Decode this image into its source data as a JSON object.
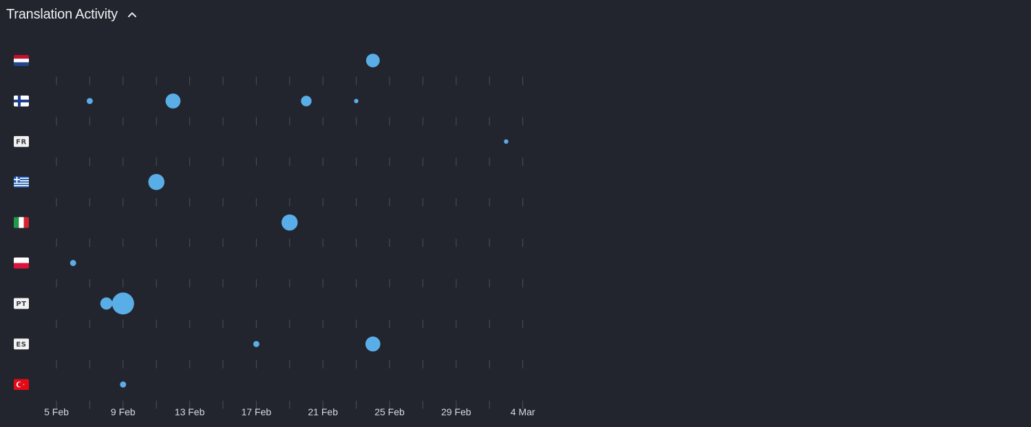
{
  "header": {
    "title": "Translation Activity",
    "collapse_icon": "chevron-up-icon"
  },
  "chart_data": {
    "type": "scatter",
    "title": "Translation Activity",
    "xlabel": "",
    "ylabel": "",
    "x_axis": {
      "type": "date",
      "range": [
        "2024-02-05",
        "2024-03-04"
      ],
      "tick_labels": [
        "5 Feb",
        "9 Feb",
        "13 Feb",
        "17 Feb",
        "21 Feb",
        "25 Feb",
        "29 Feb",
        "4 Mar"
      ],
      "minor_ticks": "daily-every-2-days"
    },
    "grid": false,
    "languages": [
      {
        "code": "nl",
        "icon": "netherlands-flag-icon",
        "badge": ""
      },
      {
        "code": "fi",
        "icon": "finland-flag-icon",
        "badge": ""
      },
      {
        "code": "fr",
        "icon": "fr-badge",
        "badge": "FR"
      },
      {
        "code": "el",
        "icon": "greece-flag-icon",
        "badge": ""
      },
      {
        "code": "it",
        "icon": "italy-flag-icon",
        "badge": ""
      },
      {
        "code": "pl",
        "icon": "poland-flag-icon",
        "badge": ""
      },
      {
        "code": "pt",
        "icon": "pt-badge",
        "badge": "PT"
      },
      {
        "code": "es",
        "icon": "es-badge",
        "badge": "ES"
      },
      {
        "code": "tr",
        "icon": "turkey-flag-icon",
        "badge": ""
      }
    ],
    "points": [
      {
        "lang": "nl",
        "date": "2024-02-24",
        "value": 5
      },
      {
        "lang": "fi",
        "date": "2024-02-07",
        "value": 1
      },
      {
        "lang": "fi",
        "date": "2024-02-12",
        "value": 6
      },
      {
        "lang": "fi",
        "date": "2024-02-20",
        "value": 3
      },
      {
        "lang": "fi",
        "date": "2024-02-23",
        "value": 0.5
      },
      {
        "lang": "fr",
        "date": "2024-03-03",
        "value": 0.5
      },
      {
        "lang": "el",
        "date": "2024-02-11",
        "value": 7
      },
      {
        "lang": "it",
        "date": "2024-02-19",
        "value": 7
      },
      {
        "lang": "pl",
        "date": "2024-02-06",
        "value": 1
      },
      {
        "lang": "pt",
        "date": "2024-02-08",
        "value": 4
      },
      {
        "lang": "pt",
        "date": "2024-02-09",
        "value": 13
      },
      {
        "lang": "es",
        "date": "2024-02-17",
        "value": 1
      },
      {
        "lang": "es",
        "date": "2024-02-24",
        "value": 6
      },
      {
        "lang": "tr",
        "date": "2024-02-09",
        "value": 1
      }
    ],
    "point_color": "#5aaee8"
  }
}
